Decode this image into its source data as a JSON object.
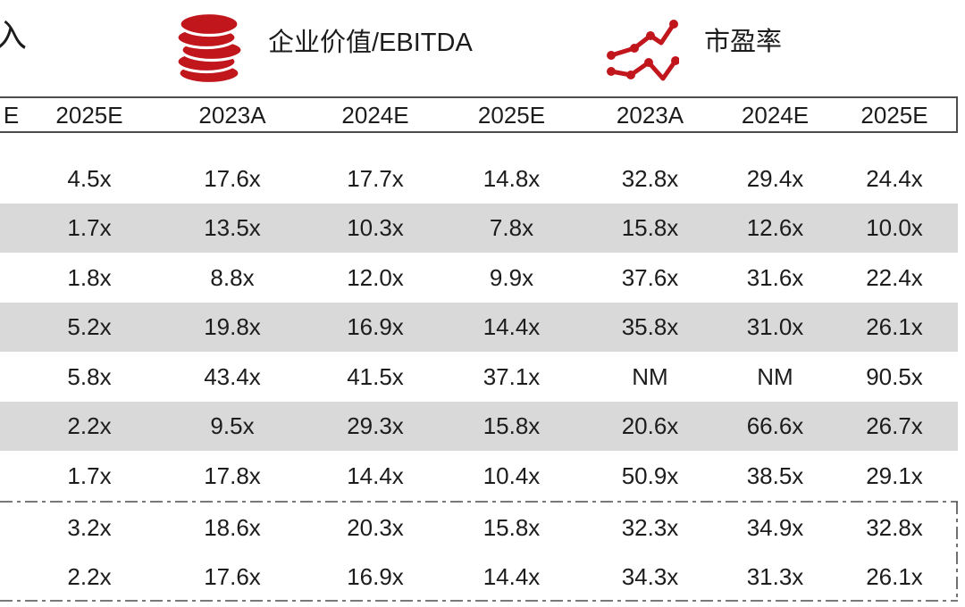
{
  "legend": {
    "cropped_left_label": "入",
    "items": [
      {
        "icon": "coins-icon",
        "label": "企业价值/EBITDA"
      },
      {
        "icon": "line-chart-icon",
        "label": "市盈率"
      }
    ]
  },
  "colors": {
    "accent_red": "#C0161C",
    "row_shade": "#D9D9D9",
    "border_gray": "#4D4D4D"
  },
  "table": {
    "columns": [
      "E",
      "2025E",
      "2023A",
      "2024E",
      "2025E",
      "2023A",
      "2024E",
      "2025E"
    ],
    "rows": [
      {
        "shaded": false,
        "values": [
          "",
          "4.5x",
          "17.6x",
          "17.7x",
          "14.8x",
          "32.8x",
          "29.4x",
          "24.4x"
        ]
      },
      {
        "shaded": true,
        "values": [
          "",
          "1.7x",
          "13.5x",
          "10.3x",
          "7.8x",
          "15.8x",
          "12.6x",
          "10.0x"
        ]
      },
      {
        "shaded": false,
        "values": [
          "",
          "1.8x",
          "8.8x",
          "12.0x",
          "9.9x",
          "37.6x",
          "31.6x",
          "22.4x"
        ]
      },
      {
        "shaded": true,
        "values": [
          "",
          "5.2x",
          "19.8x",
          "16.9x",
          "14.4x",
          "35.8x",
          "31.0x",
          "26.1x"
        ]
      },
      {
        "shaded": false,
        "values": [
          "",
          "5.8x",
          "43.4x",
          "41.5x",
          "37.1x",
          "NM",
          "NM",
          "90.5x"
        ]
      },
      {
        "shaded": true,
        "values": [
          "",
          "2.2x",
          "9.5x",
          "29.3x",
          "15.8x",
          "20.6x",
          "66.6x",
          "26.7x"
        ]
      },
      {
        "shaded": false,
        "values": [
          "",
          "1.7x",
          "17.8x",
          "14.4x",
          "10.4x",
          "50.9x",
          "38.5x",
          "29.1x"
        ]
      }
    ],
    "summary_rows": [
      {
        "values": [
          "",
          "3.2x",
          "18.6x",
          "20.3x",
          "15.8x",
          "32.3x",
          "34.9x",
          "32.8x"
        ]
      },
      {
        "values": [
          "",
          "2.2x",
          "17.6x",
          "16.9x",
          "14.4x",
          "34.3x",
          "31.3x",
          "26.1x"
        ]
      }
    ]
  }
}
